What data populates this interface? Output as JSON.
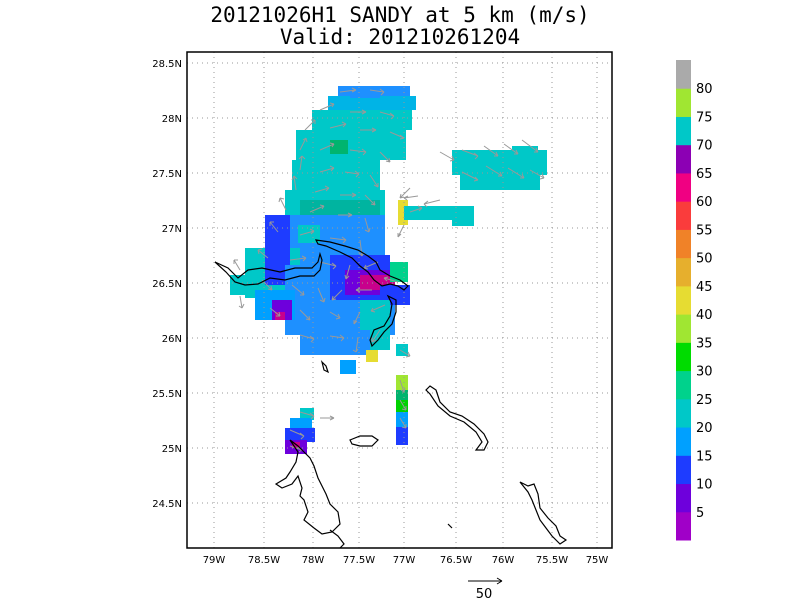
{
  "title_line1": "20121026H1 SANDY at 5 km (m/s)",
  "title_line2": "Valid: 201210261204",
  "axes": {
    "lon_labels": [
      "79W",
      "78.5W",
      "78W",
      "77.5W",
      "77W",
      "76.5W",
      "76W",
      "75.5W",
      "75W"
    ],
    "lat_labels": [
      "28.5N",
      "28N",
      "27.5N",
      "27N",
      "26.5N",
      "26N",
      "25.5N",
      "25N",
      "24.5N"
    ]
  },
  "colorbar": {
    "labels": [
      "5",
      "10",
      "15",
      "20",
      "25",
      "30",
      "35",
      "40",
      "45",
      "50",
      "55",
      "60",
      "65",
      "70",
      "75",
      "80"
    ],
    "colors": [
      "#a000c8",
      "#6e00dc",
      "#1e3cff",
      "#00a0ff",
      "#00c8c8",
      "#00d28c",
      "#00dc00",
      "#a0e632",
      "#e6dc32",
      "#e6af2d",
      "#f08228",
      "#fa3c3c",
      "#f00082",
      "#8c00b4",
      "#00c8c8",
      "#a0e632",
      "#aaaaaa"
    ]
  },
  "vector_scale": {
    "label": "50"
  },
  "colors": {
    "background": "#ffffff",
    "coast": "#000000",
    "grid": "#999999",
    "arrow": "#999999"
  }
}
